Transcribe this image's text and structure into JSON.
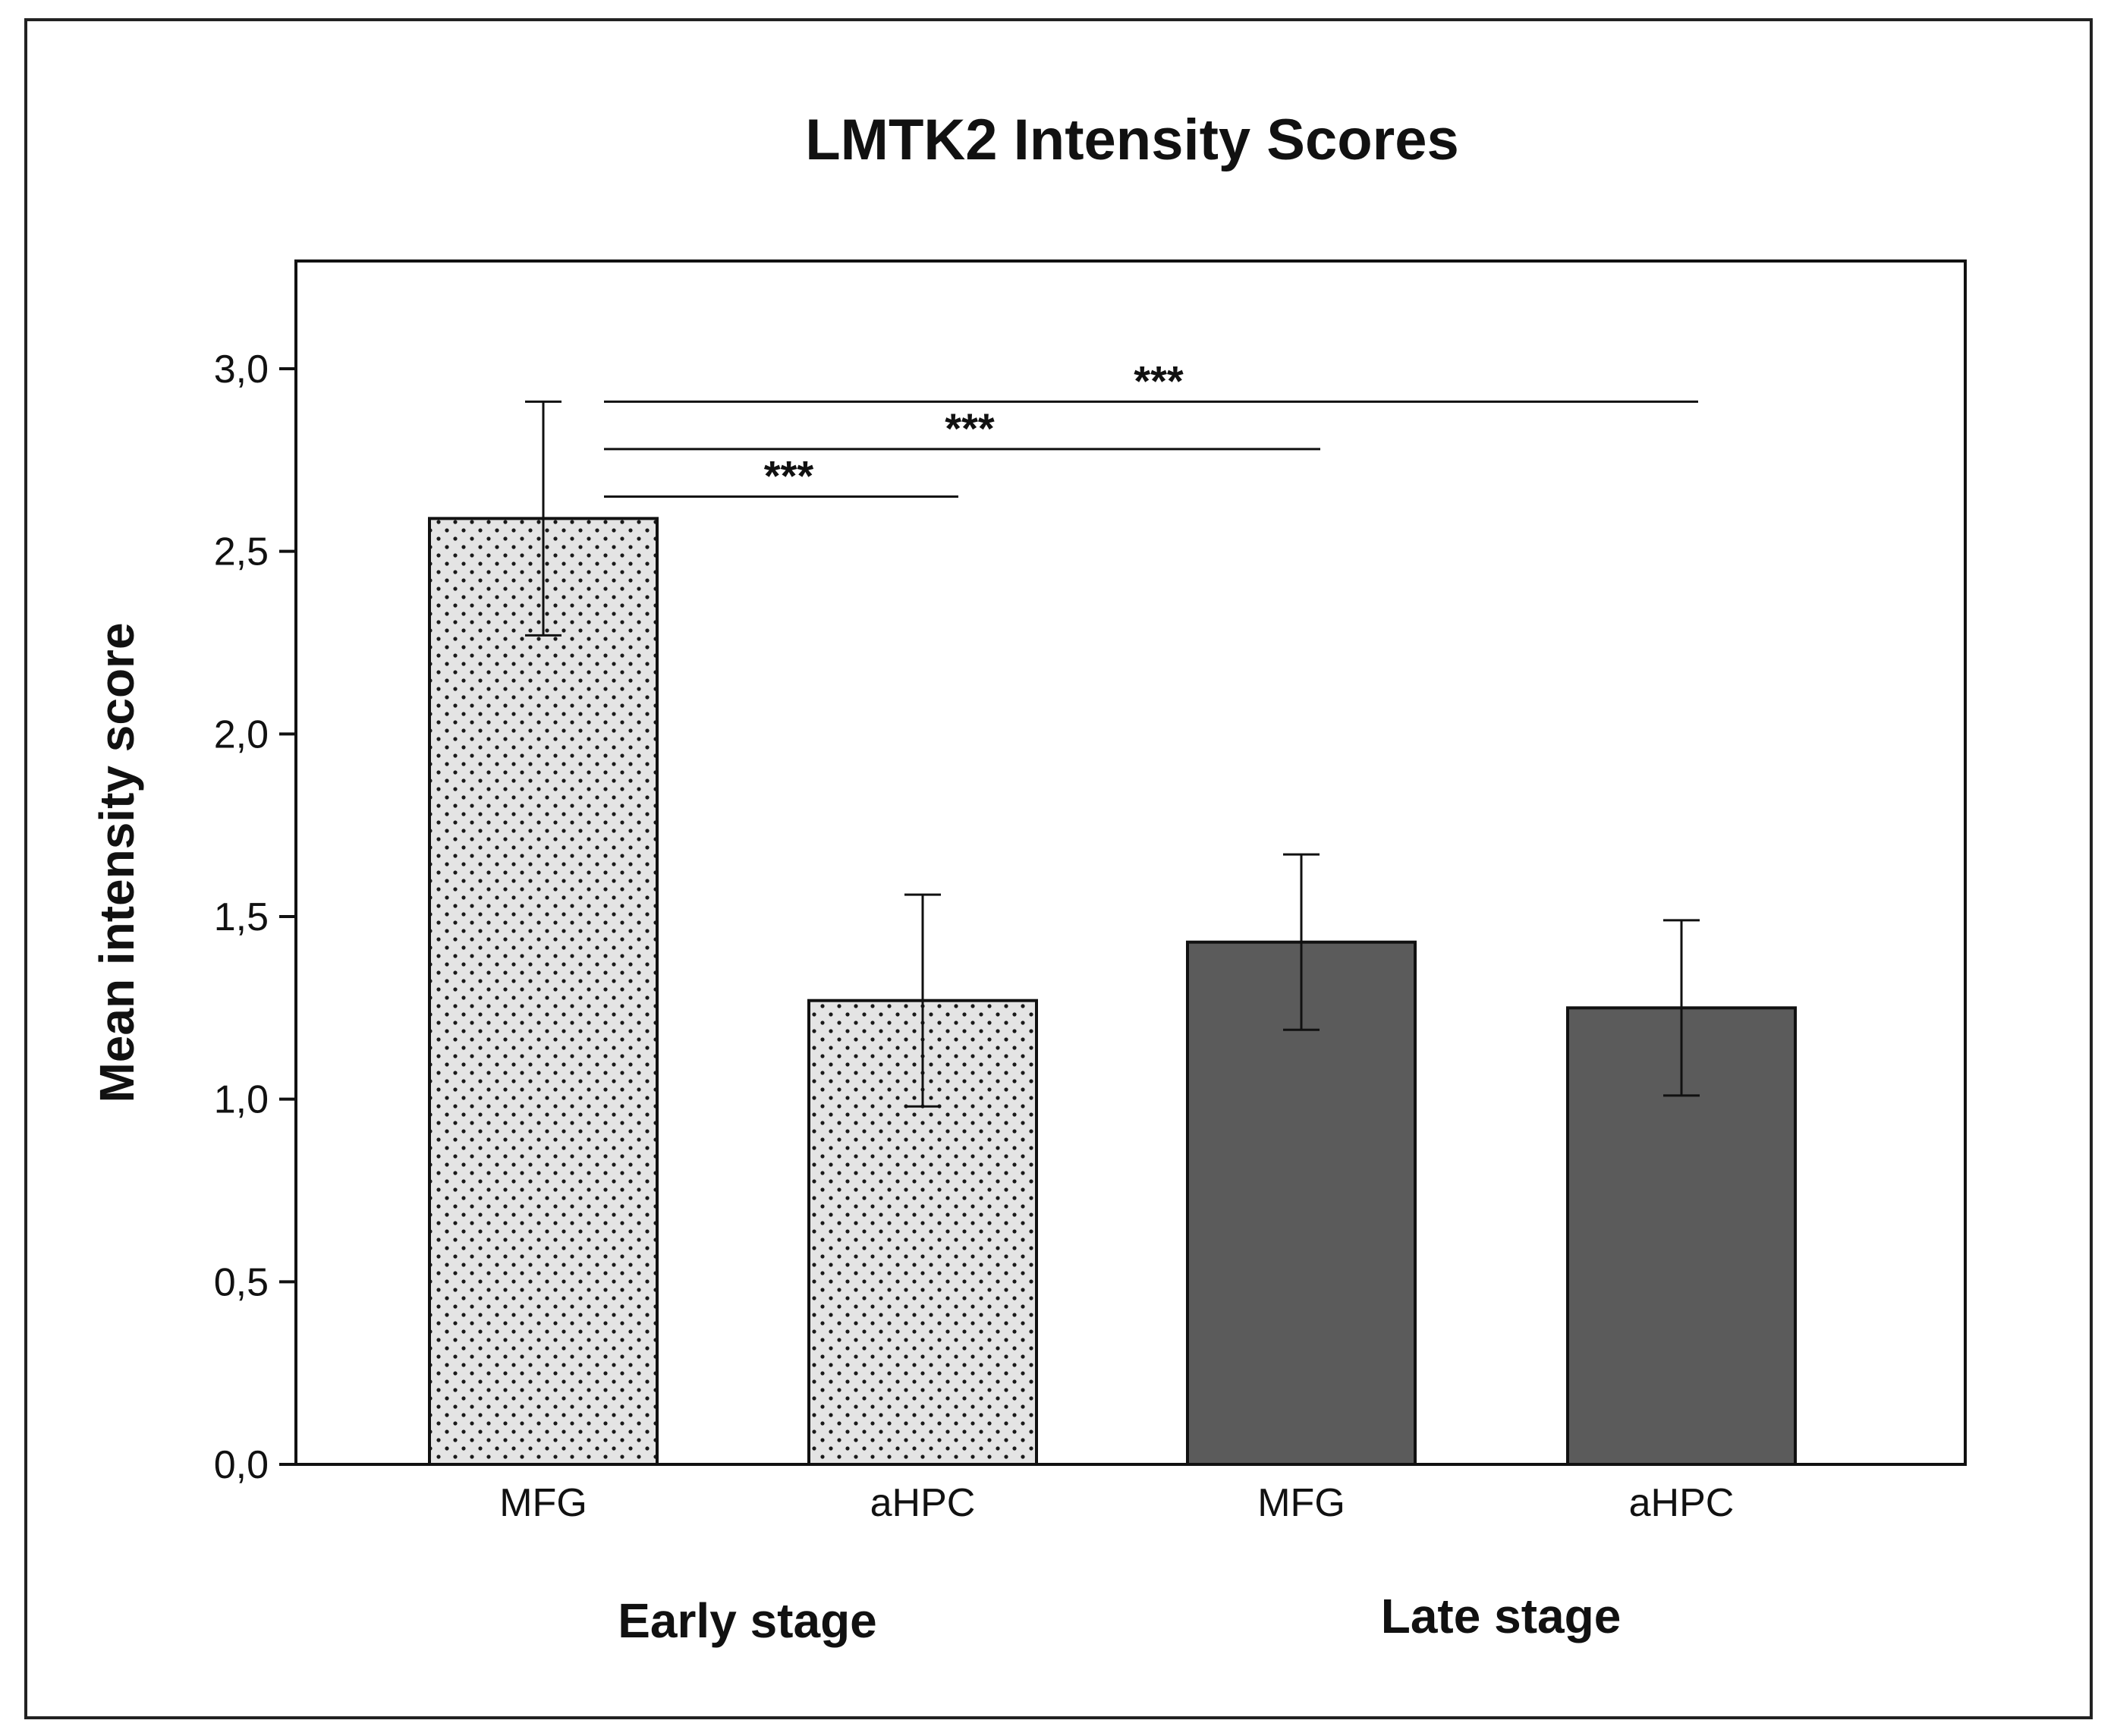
{
  "chart_data": {
    "type": "bar",
    "title": "LMTK2 Intensity Scores",
    "xlabel": "",
    "ylabel": "Mean intensity score",
    "ylim": [
      0,
      3.3
    ],
    "yticks": [
      {
        "value": 0.0,
        "label": "0,0"
      },
      {
        "value": 0.5,
        "label": "0,5"
      },
      {
        "value": 1.0,
        "label": "1,0"
      },
      {
        "value": 1.5,
        "label": "1,5"
      },
      {
        "value": 2.0,
        "label": "2,0"
      },
      {
        "value": 2.5,
        "label": "2,5"
      },
      {
        "value": 3.0,
        "label": "3,0"
      }
    ],
    "categories": [
      "MFG",
      "aHPC",
      "MFG",
      "aHPC"
    ],
    "groups": [
      {
        "name": "Early stage",
        "fill": "dotted-light-gray"
      },
      {
        "name": "Late stage",
        "fill": "dark-gray"
      }
    ],
    "bars": [
      {
        "category": "MFG",
        "group": "Early stage",
        "value": 2.59,
        "error": 0.32
      },
      {
        "category": "aHPC",
        "group": "Early stage",
        "value": 1.27,
        "error": 0.29
      },
      {
        "category": "MFG",
        "group": "Late stage",
        "value": 1.43,
        "error": 0.24
      },
      {
        "category": "aHPC",
        "group": "Late stage",
        "value": 1.25,
        "error": 0.24
      }
    ],
    "significance": [
      {
        "from": 0,
        "to": 1,
        "label": "***",
        "y": 2.65
      },
      {
        "from": 0,
        "to": 2,
        "label": "***",
        "y": 2.78
      },
      {
        "from": 0,
        "to": 3,
        "label": "***",
        "y": 2.91
      }
    ],
    "colors": {
      "early_fill": "#e4e4e4",
      "early_dots": "#1a1a1a",
      "late_fill": "#5b5b5b",
      "axis": "#111111"
    },
    "grid": false,
    "legend": "none"
  }
}
